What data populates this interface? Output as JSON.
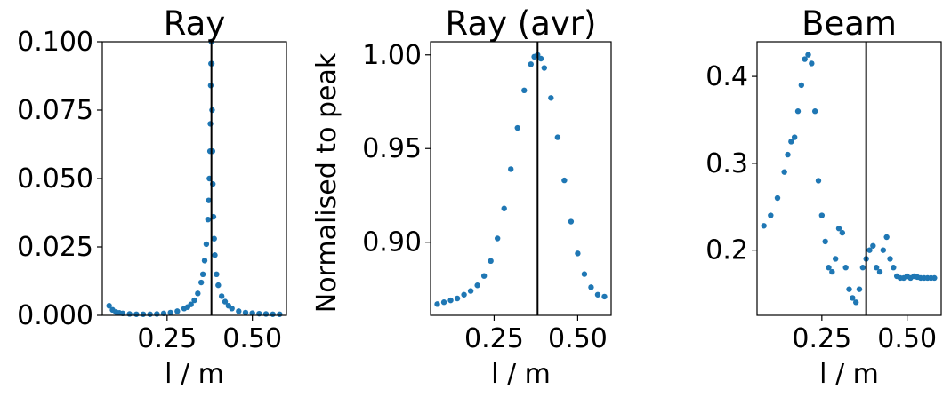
{
  "chart_data": [
    {
      "type": "scatter",
      "title": "Ray",
      "xlabel": "l / m",
      "ylabel": "",
      "xlim": [
        0.06,
        0.6
      ],
      "ylim": [
        0.0,
        0.1
      ],
      "xticks": [
        0.25,
        0.5
      ],
      "xtick_labels": [
        "0.25",
        "0.50"
      ],
      "yticks": [
        0.0,
        0.025,
        0.05,
        0.075,
        0.1
      ],
      "ytick_labels": [
        "0.000",
        "0.025",
        "0.050",
        "0.075",
        "0.100"
      ],
      "vline_x": 0.38,
      "grid": false,
      "series": [
        {
          "x": [
            0.08,
            0.09,
            0.1,
            0.11,
            0.12,
            0.14,
            0.16,
            0.18,
            0.2,
            0.22,
            0.24,
            0.26,
            0.28,
            0.3,
            0.31,
            0.32,
            0.33,
            0.34,
            0.35,
            0.355,
            0.36,
            0.365,
            0.37,
            0.372,
            0.374,
            0.376,
            0.377,
            0.378,
            0.379,
            0.38,
            0.381,
            0.382,
            0.383,
            0.384,
            0.386,
            0.388,
            0.39,
            0.395,
            0.4,
            0.41,
            0.42,
            0.43,
            0.44,
            0.46,
            0.48,
            0.5,
            0.52,
            0.54,
            0.56,
            0.58
          ],
          "y": [
            0.0035,
            0.002,
            0.0012,
            0.0009,
            0.0007,
            0.0005,
            0.0004,
            0.0004,
            0.0004,
            0.0005,
            0.0007,
            0.001,
            0.0015,
            0.0025,
            0.003,
            0.004,
            0.0055,
            0.008,
            0.012,
            0.015,
            0.02,
            0.026,
            0.035,
            0.042,
            0.05,
            0.06,
            0.07,
            0.084,
            0.092,
            0.1,
            0.092,
            0.075,
            0.06,
            0.048,
            0.036,
            0.028,
            0.022,
            0.015,
            0.011,
            0.007,
            0.005,
            0.0035,
            0.0025,
            0.0015,
            0.001,
            0.0008,
            0.0006,
            0.0005,
            0.0004,
            0.0004
          ]
        }
      ]
    },
    {
      "type": "scatter",
      "title": "Ray (avr)",
      "xlabel": "l / m",
      "ylabel": "Normalised to peak",
      "xlim": [
        0.06,
        0.6
      ],
      "ylim": [
        0.861,
        1.007
      ],
      "xticks": [
        0.25,
        0.5
      ],
      "xtick_labels": [
        "0.25",
        "0.50"
      ],
      "yticks": [
        0.9,
        0.95,
        1.0
      ],
      "ytick_labels": [
        "0.90",
        "0.95",
        "1.00"
      ],
      "vline_x": 0.38,
      "grid": false,
      "series": [
        {
          "x": [
            0.08,
            0.1,
            0.12,
            0.14,
            0.16,
            0.18,
            0.2,
            0.22,
            0.24,
            0.26,
            0.28,
            0.3,
            0.32,
            0.34,
            0.36,
            0.37,
            0.38,
            0.39,
            0.4,
            0.42,
            0.44,
            0.46,
            0.48,
            0.5,
            0.52,
            0.54,
            0.56,
            0.58
          ],
          "y": [
            0.867,
            0.868,
            0.869,
            0.87,
            0.872,
            0.874,
            0.877,
            0.882,
            0.89,
            0.902,
            0.918,
            0.939,
            0.961,
            0.981,
            0.995,
            0.999,
            1.0,
            0.998,
            0.993,
            0.977,
            0.956,
            0.933,
            0.911,
            0.894,
            0.883,
            0.876,
            0.872,
            0.871
          ]
        }
      ]
    },
    {
      "type": "scatter",
      "title": "Beam",
      "xlabel": "l / m",
      "ylabel": "",
      "xlim": [
        0.06,
        0.6
      ],
      "ylim": [
        0.125,
        0.44
      ],
      "xticks": [
        0.25,
        0.5
      ],
      "xtick_labels": [
        "0.25",
        "0.50"
      ],
      "yticks": [
        0.2,
        0.3,
        0.4
      ],
      "ytick_labels": [
        "0.2",
        "0.3",
        "0.4"
      ],
      "vline_x": 0.38,
      "grid": false,
      "series": [
        {
          "x": [
            0.08,
            0.1,
            0.12,
            0.14,
            0.15,
            0.16,
            0.17,
            0.18,
            0.19,
            0.2,
            0.21,
            0.22,
            0.23,
            0.24,
            0.25,
            0.26,
            0.27,
            0.28,
            0.29,
            0.3,
            0.31,
            0.32,
            0.33,
            0.34,
            0.35,
            0.36,
            0.37,
            0.38,
            0.39,
            0.4,
            0.41,
            0.42,
            0.43,
            0.44,
            0.45,
            0.46,
            0.47,
            0.48,
            0.49,
            0.5,
            0.51,
            0.52,
            0.53,
            0.54,
            0.55,
            0.56,
            0.57,
            0.58
          ],
          "y": [
            0.228,
            0.24,
            0.26,
            0.29,
            0.31,
            0.325,
            0.33,
            0.36,
            0.39,
            0.42,
            0.425,
            0.415,
            0.36,
            0.28,
            0.24,
            0.21,
            0.18,
            0.175,
            0.19,
            0.225,
            0.22,
            0.18,
            0.155,
            0.145,
            0.14,
            0.155,
            0.18,
            0.19,
            0.2,
            0.205,
            0.18,
            0.175,
            0.2,
            0.215,
            0.19,
            0.18,
            0.17,
            0.168,
            0.168,
            0.17,
            0.168,
            0.17,
            0.169,
            0.168,
            0.168,
            0.168,
            0.168,
            0.168
          ]
        }
      ]
    }
  ],
  "colors": {
    "points": "#1f77b4",
    "vline": "#000000",
    "axes": "#000000"
  }
}
